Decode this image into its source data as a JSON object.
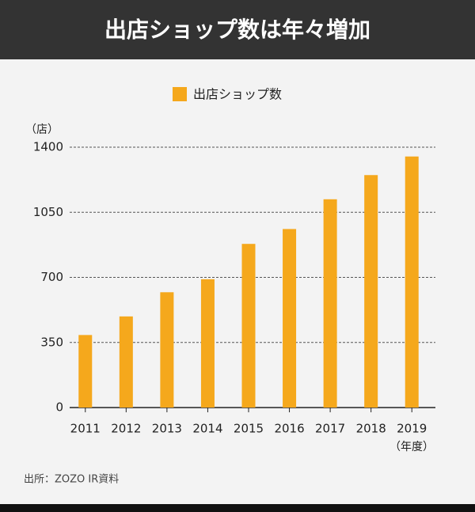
{
  "chart_data": {
    "type": "bar",
    "title": "出店ショップ数は年々増加",
    "y_unit": "（店）",
    "x_unit": "（年度）",
    "source": "出所：ZOZO IR資料",
    "categories": [
      "2011",
      "2012",
      "2013",
      "2014",
      "2015",
      "2016",
      "2017",
      "2018",
      "2019"
    ],
    "series": [
      {
        "name": "出店ショップ数",
        "color": "#f5a81c",
        "values": [
          390,
          490,
          620,
          690,
          880,
          960,
          1120,
          1250,
          1350
        ]
      }
    ],
    "ylim": [
      0,
      1400
    ],
    "yticks": [
      0,
      350,
      700,
      1050,
      1400
    ],
    "grid": true,
    "legend": "top"
  }
}
